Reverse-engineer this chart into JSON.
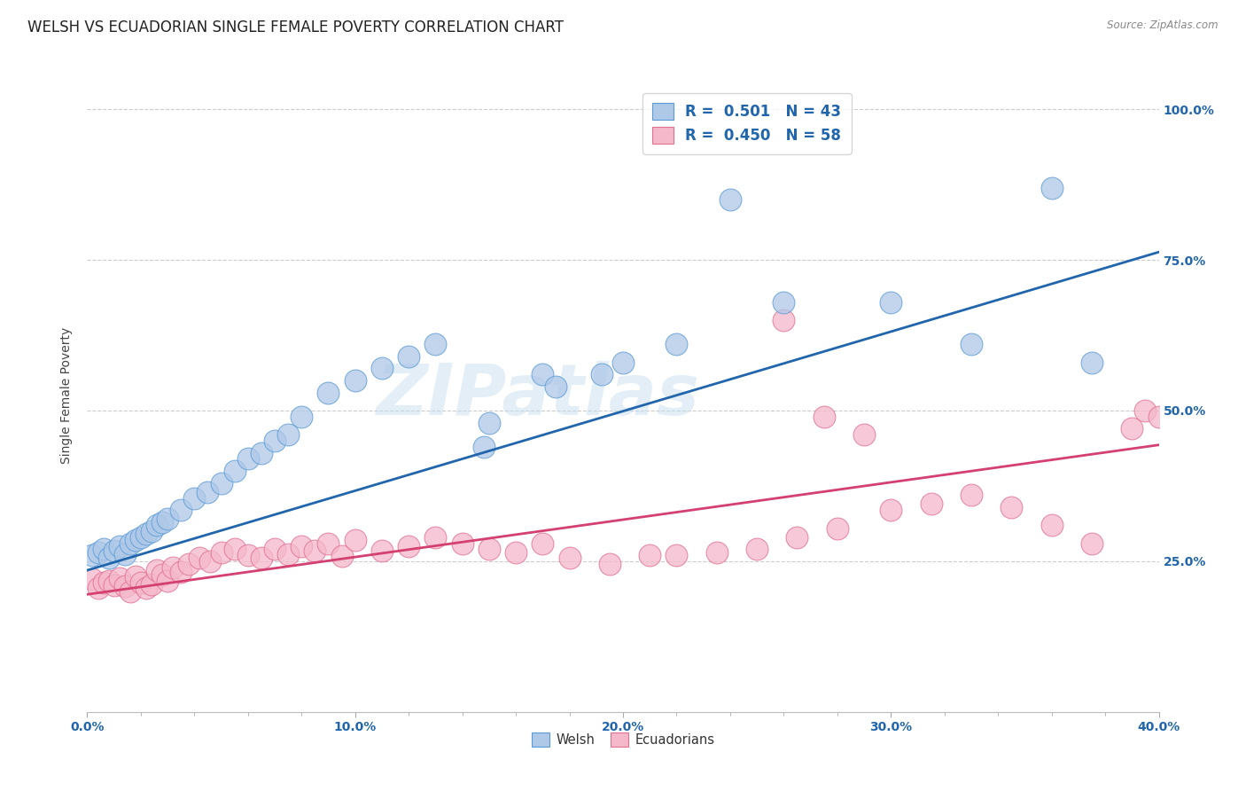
{
  "title": "WELSH VS ECUADORIAN SINGLE FEMALE POVERTY CORRELATION CHART",
  "source": "Source: ZipAtlas.com",
  "ylabel_label": "Single Female Poverty",
  "xlim": [
    0.0,
    0.4
  ],
  "ylim": [
    0.0,
    1.05
  ],
  "xtick_labels": [
    "0.0%",
    "",
    "",
    "",
    "",
    "10.0%",
    "",
    "",
    "",
    "",
    "20.0%",
    "",
    "",
    "",
    "",
    "30.0%",
    "",
    "",
    "",
    "",
    "40.0%"
  ],
  "xtick_values": [
    0.0,
    0.02,
    0.04,
    0.06,
    0.08,
    0.1,
    0.12,
    0.14,
    0.16,
    0.18,
    0.2,
    0.22,
    0.24,
    0.26,
    0.28,
    0.3,
    0.32,
    0.34,
    0.36,
    0.38,
    0.4
  ],
  "xtick_display": [
    0.0,
    0.1,
    0.2,
    0.3,
    0.4
  ],
  "xtick_display_labels": [
    "0.0%",
    "10.0%",
    "20.0%",
    "30.0%",
    "40.0%"
  ],
  "ytick_labels": [
    "25.0%",
    "50.0%",
    "75.0%",
    "100.0%"
  ],
  "ytick_values": [
    0.25,
    0.5,
    0.75,
    1.0
  ],
  "welsh_color": "#aec8e8",
  "ecuadorian_color": "#f5b8cb",
  "welsh_edge_color": "#5b9bd5",
  "ecuadorian_edge_color": "#e07090",
  "welsh_line_color": "#2166ac",
  "ecuadorian_line_color": "#d44070",
  "label_color": "#2166ac",
  "welsh_R": "0.501",
  "welsh_N": "43",
  "ecuadorian_R": "0.450",
  "ecuadorian_N": "58",
  "watermark": "ZIPatlas",
  "title_fontsize": 12,
  "axis_label_fontsize": 10,
  "tick_fontsize": 10,
  "welsh_line_intercept": 0.235,
  "welsh_line_slope": 1.32,
  "ecuadorian_line_intercept": 0.195,
  "ecuadorian_line_slope": 0.62,
  "welsh_scatter_x": [
    0.002,
    0.004,
    0.006,
    0.008,
    0.01,
    0.012,
    0.014,
    0.016,
    0.018,
    0.02,
    0.022,
    0.024,
    0.026,
    0.028,
    0.03,
    0.035,
    0.04,
    0.045,
    0.05,
    0.055,
    0.06,
    0.065,
    0.07,
    0.075,
    0.08,
    0.09,
    0.1,
    0.11,
    0.12,
    0.13,
    0.15,
    0.17,
    0.2,
    0.22,
    0.24,
    0.26,
    0.3,
    0.33,
    0.36,
    0.375,
    0.148,
    0.175,
    0.192
  ],
  "welsh_scatter_y": [
    0.26,
    0.265,
    0.27,
    0.255,
    0.268,
    0.275,
    0.262,
    0.28,
    0.285,
    0.29,
    0.295,
    0.3,
    0.31,
    0.315,
    0.32,
    0.335,
    0.355,
    0.365,
    0.38,
    0.4,
    0.42,
    0.43,
    0.45,
    0.46,
    0.49,
    0.53,
    0.55,
    0.57,
    0.59,
    0.61,
    0.48,
    0.56,
    0.58,
    0.61,
    0.85,
    0.68,
    0.68,
    0.61,
    0.87,
    0.58,
    0.44,
    0.54,
    0.56
  ],
  "ecuadorian_scatter_x": [
    0.002,
    0.004,
    0.006,
    0.008,
    0.01,
    0.012,
    0.014,
    0.016,
    0.018,
    0.02,
    0.022,
    0.024,
    0.026,
    0.028,
    0.03,
    0.032,
    0.035,
    0.038,
    0.042,
    0.046,
    0.05,
    0.055,
    0.06,
    0.065,
    0.07,
    0.075,
    0.08,
    0.085,
    0.09,
    0.095,
    0.1,
    0.11,
    0.12,
    0.13,
    0.14,
    0.15,
    0.16,
    0.17,
    0.18,
    0.195,
    0.21,
    0.22,
    0.235,
    0.25,
    0.265,
    0.28,
    0.3,
    0.315,
    0.33,
    0.345,
    0.26,
    0.275,
    0.29,
    0.36,
    0.375,
    0.39,
    0.395,
    0.4
  ],
  "ecuadorian_scatter_y": [
    0.22,
    0.205,
    0.215,
    0.218,
    0.21,
    0.222,
    0.208,
    0.2,
    0.225,
    0.215,
    0.205,
    0.212,
    0.235,
    0.228,
    0.218,
    0.24,
    0.232,
    0.245,
    0.255,
    0.25,
    0.265,
    0.27,
    0.26,
    0.255,
    0.27,
    0.262,
    0.275,
    0.268,
    0.28,
    0.258,
    0.285,
    0.268,
    0.275,
    0.29,
    0.28,
    0.27,
    0.265,
    0.28,
    0.255,
    0.245,
    0.26,
    0.26,
    0.265,
    0.27,
    0.29,
    0.305,
    0.335,
    0.345,
    0.36,
    0.34,
    0.65,
    0.49,
    0.46,
    0.31,
    0.28,
    0.47,
    0.5,
    0.49
  ]
}
